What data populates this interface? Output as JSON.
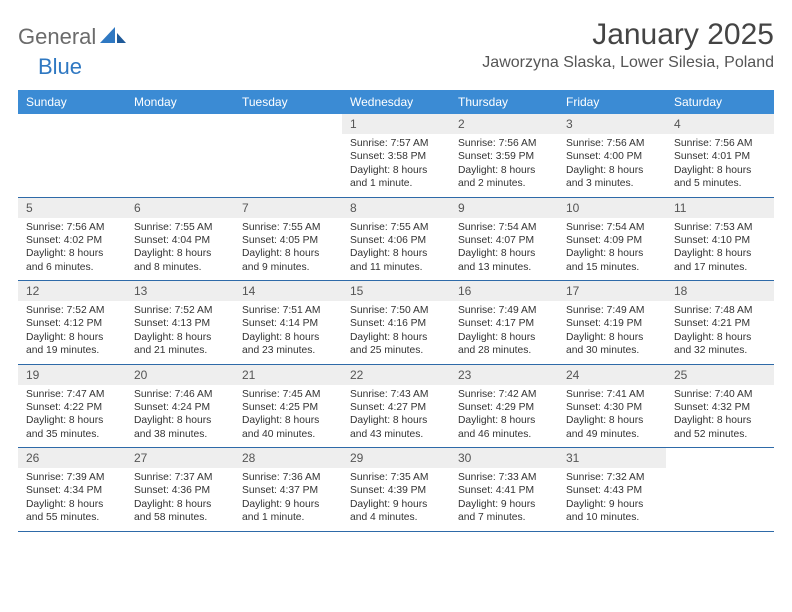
{
  "logo": {
    "text1": "General",
    "text2": "Blue"
  },
  "title": "January 2025",
  "location": "Jaworzyna Slaska, Lower Silesia, Poland",
  "colors": {
    "header_bg": "#3b8bd4",
    "header_fg": "#ffffff",
    "daynum_bg": "#eeeeee",
    "row_border": "#2e6aa8",
    "logo_gray": "#6b6b6b",
    "logo_blue": "#2f78c2"
  },
  "weekdays": [
    "Sunday",
    "Monday",
    "Tuesday",
    "Wednesday",
    "Thursday",
    "Friday",
    "Saturday"
  ],
  "weeks": [
    {
      "nums": [
        "",
        "",
        "",
        "1",
        "2",
        "3",
        "4"
      ],
      "details": [
        null,
        null,
        null,
        {
          "sunrise": "Sunrise: 7:57 AM",
          "sunset": "Sunset: 3:58 PM",
          "daylight": "Daylight: 8 hours and 1 minute."
        },
        {
          "sunrise": "Sunrise: 7:56 AM",
          "sunset": "Sunset: 3:59 PM",
          "daylight": "Daylight: 8 hours and 2 minutes."
        },
        {
          "sunrise": "Sunrise: 7:56 AM",
          "sunset": "Sunset: 4:00 PM",
          "daylight": "Daylight: 8 hours and 3 minutes."
        },
        {
          "sunrise": "Sunrise: 7:56 AM",
          "sunset": "Sunset: 4:01 PM",
          "daylight": "Daylight: 8 hours and 5 minutes."
        }
      ]
    },
    {
      "nums": [
        "5",
        "6",
        "7",
        "8",
        "9",
        "10",
        "11"
      ],
      "details": [
        {
          "sunrise": "Sunrise: 7:56 AM",
          "sunset": "Sunset: 4:02 PM",
          "daylight": "Daylight: 8 hours and 6 minutes."
        },
        {
          "sunrise": "Sunrise: 7:55 AM",
          "sunset": "Sunset: 4:04 PM",
          "daylight": "Daylight: 8 hours and 8 minutes."
        },
        {
          "sunrise": "Sunrise: 7:55 AM",
          "sunset": "Sunset: 4:05 PM",
          "daylight": "Daylight: 8 hours and 9 minutes."
        },
        {
          "sunrise": "Sunrise: 7:55 AM",
          "sunset": "Sunset: 4:06 PM",
          "daylight": "Daylight: 8 hours and 11 minutes."
        },
        {
          "sunrise": "Sunrise: 7:54 AM",
          "sunset": "Sunset: 4:07 PM",
          "daylight": "Daylight: 8 hours and 13 minutes."
        },
        {
          "sunrise": "Sunrise: 7:54 AM",
          "sunset": "Sunset: 4:09 PM",
          "daylight": "Daylight: 8 hours and 15 minutes."
        },
        {
          "sunrise": "Sunrise: 7:53 AM",
          "sunset": "Sunset: 4:10 PM",
          "daylight": "Daylight: 8 hours and 17 minutes."
        }
      ]
    },
    {
      "nums": [
        "12",
        "13",
        "14",
        "15",
        "16",
        "17",
        "18"
      ],
      "details": [
        {
          "sunrise": "Sunrise: 7:52 AM",
          "sunset": "Sunset: 4:12 PM",
          "daylight": "Daylight: 8 hours and 19 minutes."
        },
        {
          "sunrise": "Sunrise: 7:52 AM",
          "sunset": "Sunset: 4:13 PM",
          "daylight": "Daylight: 8 hours and 21 minutes."
        },
        {
          "sunrise": "Sunrise: 7:51 AM",
          "sunset": "Sunset: 4:14 PM",
          "daylight": "Daylight: 8 hours and 23 minutes."
        },
        {
          "sunrise": "Sunrise: 7:50 AM",
          "sunset": "Sunset: 4:16 PM",
          "daylight": "Daylight: 8 hours and 25 minutes."
        },
        {
          "sunrise": "Sunrise: 7:49 AM",
          "sunset": "Sunset: 4:17 PM",
          "daylight": "Daylight: 8 hours and 28 minutes."
        },
        {
          "sunrise": "Sunrise: 7:49 AM",
          "sunset": "Sunset: 4:19 PM",
          "daylight": "Daylight: 8 hours and 30 minutes."
        },
        {
          "sunrise": "Sunrise: 7:48 AM",
          "sunset": "Sunset: 4:21 PM",
          "daylight": "Daylight: 8 hours and 32 minutes."
        }
      ]
    },
    {
      "nums": [
        "19",
        "20",
        "21",
        "22",
        "23",
        "24",
        "25"
      ],
      "details": [
        {
          "sunrise": "Sunrise: 7:47 AM",
          "sunset": "Sunset: 4:22 PM",
          "daylight": "Daylight: 8 hours and 35 minutes."
        },
        {
          "sunrise": "Sunrise: 7:46 AM",
          "sunset": "Sunset: 4:24 PM",
          "daylight": "Daylight: 8 hours and 38 minutes."
        },
        {
          "sunrise": "Sunrise: 7:45 AM",
          "sunset": "Sunset: 4:25 PM",
          "daylight": "Daylight: 8 hours and 40 minutes."
        },
        {
          "sunrise": "Sunrise: 7:43 AM",
          "sunset": "Sunset: 4:27 PM",
          "daylight": "Daylight: 8 hours and 43 minutes."
        },
        {
          "sunrise": "Sunrise: 7:42 AM",
          "sunset": "Sunset: 4:29 PM",
          "daylight": "Daylight: 8 hours and 46 minutes."
        },
        {
          "sunrise": "Sunrise: 7:41 AM",
          "sunset": "Sunset: 4:30 PM",
          "daylight": "Daylight: 8 hours and 49 minutes."
        },
        {
          "sunrise": "Sunrise: 7:40 AM",
          "sunset": "Sunset: 4:32 PM",
          "daylight": "Daylight: 8 hours and 52 minutes."
        }
      ]
    },
    {
      "nums": [
        "26",
        "27",
        "28",
        "29",
        "30",
        "31",
        ""
      ],
      "details": [
        {
          "sunrise": "Sunrise: 7:39 AM",
          "sunset": "Sunset: 4:34 PM",
          "daylight": "Daylight: 8 hours and 55 minutes."
        },
        {
          "sunrise": "Sunrise: 7:37 AM",
          "sunset": "Sunset: 4:36 PM",
          "daylight": "Daylight: 8 hours and 58 minutes."
        },
        {
          "sunrise": "Sunrise: 7:36 AM",
          "sunset": "Sunset: 4:37 PM",
          "daylight": "Daylight: 9 hours and 1 minute."
        },
        {
          "sunrise": "Sunrise: 7:35 AM",
          "sunset": "Sunset: 4:39 PM",
          "daylight": "Daylight: 9 hours and 4 minutes."
        },
        {
          "sunrise": "Sunrise: 7:33 AM",
          "sunset": "Sunset: 4:41 PM",
          "daylight": "Daylight: 9 hours and 7 minutes."
        },
        {
          "sunrise": "Sunrise: 7:32 AM",
          "sunset": "Sunset: 4:43 PM",
          "daylight": "Daylight: 9 hours and 10 minutes."
        },
        null
      ]
    }
  ]
}
